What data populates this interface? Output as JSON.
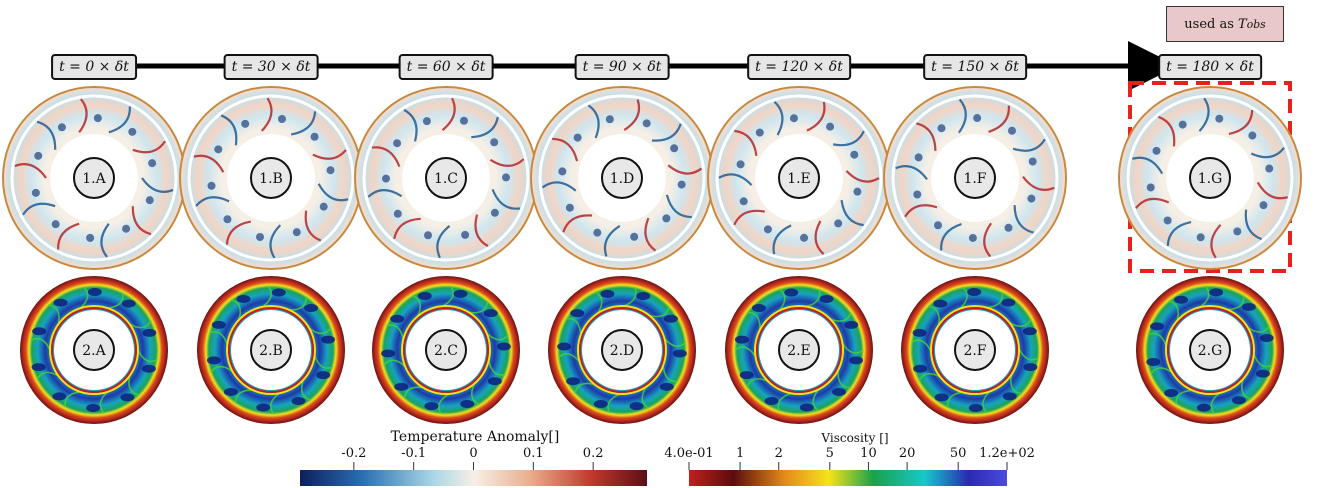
{
  "time_labels": [
    "t = 0 × δt",
    "t = 30 × δt",
    "t = 60 × δt",
    "t = 90 × δt",
    "t = 120 × δt",
    "t = 150 × δt",
    "t = 180 × δt"
  ],
  "row1_labels": [
    "1.A",
    "1.B",
    "1.C",
    "1.D",
    "1.E",
    "1.F",
    "1.G"
  ],
  "row2_labels": [
    "2.A",
    "2.B",
    "2.C",
    "2.D",
    "2.E",
    "2.F",
    "2.G"
  ],
  "observation_box": {
    "prefix": "used as ",
    "symbol": "T",
    "subscript": "obs"
  },
  "highlight_color": "#e8211f",
  "colorbar_temperature": {
    "title": "Temperature Anomaly[]",
    "ticks": [
      "-0.2",
      "-0.1",
      "0",
      "0.1",
      "0.2"
    ],
    "tick_values": [
      -0.2,
      -0.1,
      0,
      0.1,
      0.2
    ],
    "range": [
      -0.29,
      0.29
    ],
    "colors": [
      "#0d1f5c",
      "#2a6fb0",
      "#a7d5e6",
      "#f7efe7",
      "#eab08f",
      "#c0392b",
      "#5a0f18"
    ]
  },
  "colorbar_viscosity": {
    "title": "Viscosity []",
    "ticks": [
      "4.0e-01",
      "1",
      "2",
      "5",
      "10",
      "20",
      "50",
      "1.2e+02"
    ],
    "tick_values": [
      0.4,
      1,
      2,
      5,
      10,
      20,
      50,
      120
    ],
    "scale": "log",
    "colors": [
      "#c0201f",
      "#5a0d0d",
      "#e48a1a",
      "#f6e31a",
      "#1aa14a",
      "#16c9c9",
      "#2a2ab2",
      "#4b4be0"
    ]
  }
}
